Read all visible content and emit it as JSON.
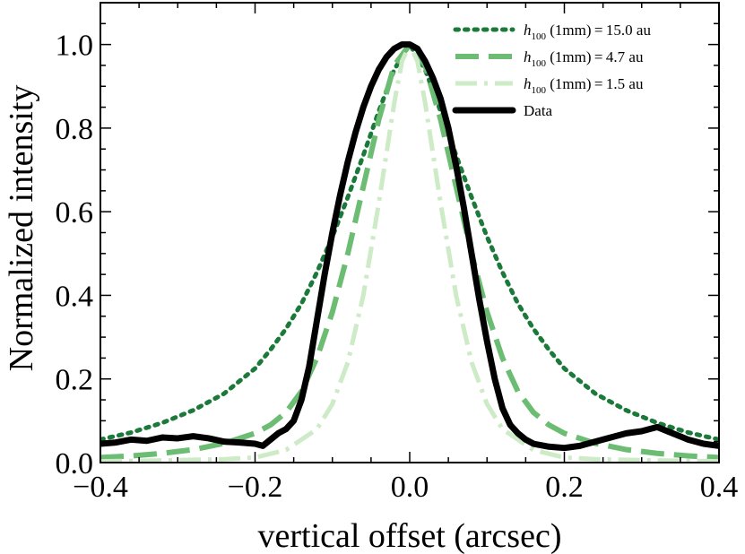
{
  "chart_data": {
    "type": "line",
    "title": "",
    "xlabel": "vertical offset (arcsec)",
    "ylabel": "Normalized intensity",
    "xlim": [
      -0.4,
      0.4
    ],
    "ylim": [
      0.0,
      1.1
    ],
    "x_ticks": [
      -0.4,
      -0.2,
      0.0,
      0.2,
      0.4
    ],
    "x_tick_labels": [
      "−0.4",
      "−0.2",
      "0.0",
      "0.2",
      "0.4"
    ],
    "y_ticks": [
      0.0,
      0.2,
      0.4,
      0.6,
      0.8,
      1.0
    ],
    "y_tick_labels": [
      "0.0",
      "0.2",
      "0.4",
      "0.6",
      "0.8",
      "1.0"
    ],
    "grid": false,
    "legend_position": "top-right",
    "series": [
      {
        "name": "15.0 au",
        "legend_prefix": "h",
        "legend_sub": "100",
        "legend_mid": " (1mm) = ",
        "legend_value": "15.0 au",
        "style": "dotted",
        "color": "#1b7a3a",
        "x": [
          -0.4,
          -0.36,
          -0.32,
          -0.28,
          -0.24,
          -0.2,
          -0.18,
          -0.16,
          -0.14,
          -0.12,
          -0.1,
          -0.08,
          -0.06,
          -0.04,
          -0.02,
          0.0,
          0.02,
          0.04,
          0.06,
          0.08,
          0.1,
          0.12,
          0.14,
          0.16,
          0.18,
          0.2,
          0.24,
          0.28,
          0.32,
          0.36,
          0.4
        ],
        "y": [
          0.055,
          0.072,
          0.095,
          0.125,
          0.165,
          0.225,
          0.27,
          0.32,
          0.38,
          0.455,
          0.54,
          0.635,
          0.735,
          0.84,
          0.94,
          1.0,
          0.94,
          0.84,
          0.735,
          0.635,
          0.54,
          0.455,
          0.38,
          0.32,
          0.27,
          0.225,
          0.165,
          0.125,
          0.095,
          0.072,
          0.055
        ]
      },
      {
        "name": "4.7 au",
        "legend_prefix": "h",
        "legend_sub": "100",
        "legend_mid": " (1mm) = ",
        "legend_value": "4.7 au",
        "style": "dashed",
        "color": "#6cbd73",
        "x": [
          -0.4,
          -0.36,
          -0.32,
          -0.28,
          -0.24,
          -0.2,
          -0.18,
          -0.16,
          -0.14,
          -0.12,
          -0.1,
          -0.08,
          -0.06,
          -0.04,
          -0.02,
          0.0,
          0.02,
          0.04,
          0.06,
          0.08,
          0.1,
          0.12,
          0.14,
          0.16,
          0.18,
          0.2,
          0.24,
          0.28,
          0.32,
          0.36,
          0.4
        ],
        "y": [
          0.012,
          0.016,
          0.022,
          0.031,
          0.046,
          0.07,
          0.09,
          0.12,
          0.17,
          0.25,
          0.36,
          0.5,
          0.66,
          0.82,
          0.95,
          1.0,
          0.95,
          0.82,
          0.66,
          0.5,
          0.36,
          0.25,
          0.17,
          0.12,
          0.09,
          0.07,
          0.046,
          0.031,
          0.022,
          0.016,
          0.012
        ]
      },
      {
        "name": "1.5 au",
        "legend_prefix": "h",
        "legend_sub": "100",
        "legend_mid": " (1mm) = ",
        "legend_value": "1.5 au",
        "style": "dashdot",
        "color": "#cdebc6",
        "x": [
          -0.4,
          -0.32,
          -0.24,
          -0.2,
          -0.16,
          -0.12,
          -0.1,
          -0.08,
          -0.06,
          -0.04,
          -0.03,
          -0.02,
          -0.01,
          0.0,
          0.01,
          0.02,
          0.03,
          0.04,
          0.06,
          0.08,
          0.1,
          0.12,
          0.16,
          0.2,
          0.24,
          0.32,
          0.4
        ],
        "y": [
          0.003,
          0.005,
          0.008,
          0.012,
          0.03,
          0.08,
          0.14,
          0.24,
          0.4,
          0.62,
          0.74,
          0.86,
          0.96,
          1.0,
          0.96,
          0.86,
          0.74,
          0.62,
          0.4,
          0.24,
          0.14,
          0.08,
          0.03,
          0.012,
          0.008,
          0.005,
          0.003
        ]
      },
      {
        "name": "Data",
        "legend_value": "Data",
        "style": "solid",
        "color": "#000000",
        "x": [
          -0.4,
          -0.38,
          -0.36,
          -0.34,
          -0.32,
          -0.3,
          -0.28,
          -0.26,
          -0.24,
          -0.22,
          -0.2,
          -0.19,
          -0.18,
          -0.17,
          -0.16,
          -0.15,
          -0.14,
          -0.13,
          -0.12,
          -0.11,
          -0.1,
          -0.09,
          -0.08,
          -0.07,
          -0.06,
          -0.05,
          -0.04,
          -0.03,
          -0.02,
          -0.01,
          0.0,
          0.01,
          0.02,
          0.03,
          0.04,
          0.05,
          0.06,
          0.07,
          0.08,
          0.09,
          0.1,
          0.11,
          0.12,
          0.13,
          0.14,
          0.15,
          0.16,
          0.18,
          0.2,
          0.22,
          0.24,
          0.26,
          0.28,
          0.3,
          0.32,
          0.34,
          0.36,
          0.38,
          0.4
        ],
        "y": [
          0.045,
          0.048,
          0.055,
          0.052,
          0.06,
          0.058,
          0.063,
          0.058,
          0.05,
          0.048,
          0.045,
          0.04,
          0.055,
          0.07,
          0.08,
          0.1,
          0.15,
          0.23,
          0.34,
          0.45,
          0.55,
          0.64,
          0.72,
          0.79,
          0.85,
          0.9,
          0.94,
          0.97,
          0.99,
          1.0,
          1.0,
          0.99,
          0.96,
          0.92,
          0.87,
          0.8,
          0.71,
          0.61,
          0.5,
          0.39,
          0.29,
          0.2,
          0.13,
          0.09,
          0.07,
          0.055,
          0.045,
          0.038,
          0.035,
          0.04,
          0.05,
          0.06,
          0.07,
          0.075,
          0.085,
          0.07,
          0.055,
          0.045,
          0.04
        ]
      }
    ]
  }
}
